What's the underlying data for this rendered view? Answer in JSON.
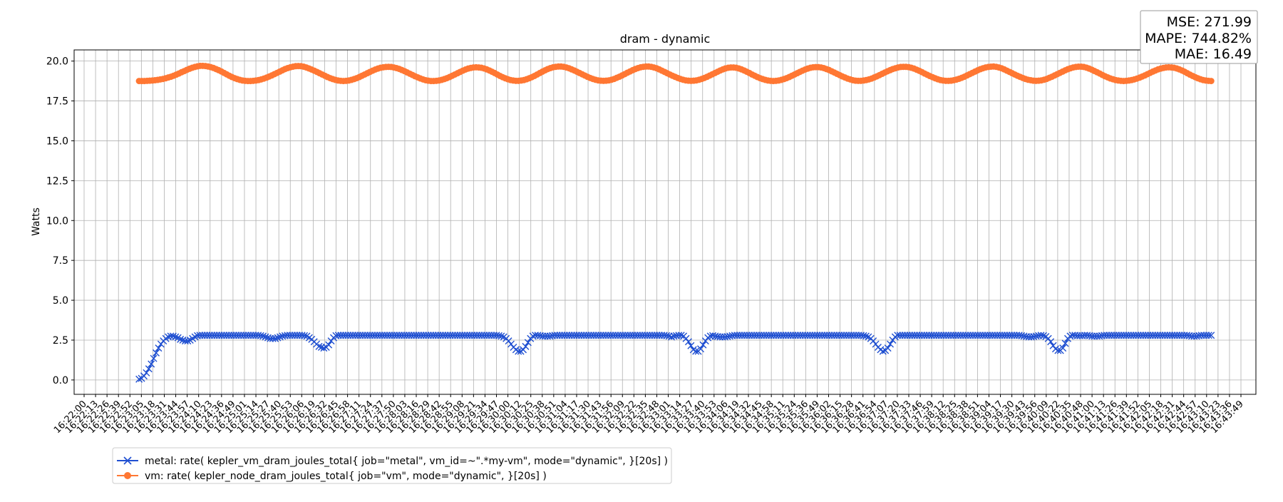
{
  "chart_data": {
    "type": "line",
    "title": "dram - dynamic",
    "xlabel": "",
    "ylabel": "Watts",
    "ylim": [
      -0.9,
      20.7
    ],
    "y_ticks": [
      0.0,
      2.5,
      5.0,
      7.5,
      10.0,
      12.5,
      15.0,
      17.5,
      20.0
    ],
    "y_tick_labels": [
      "0.0",
      "2.5",
      "5.0",
      "7.5",
      "10.0",
      "12.5",
      "15.0",
      "17.5",
      "20.0"
    ],
    "grid": true,
    "legend_placement": "bottom-left, below axes",
    "x_ticks": [
      "16:22:00",
      "16:22:13",
      "16:22:26",
      "16:22:39",
      "16:22:52",
      "16:23:05",
      "16:23:18",
      "16:23:31",
      "16:23:44",
      "16:23:57",
      "16:24:10",
      "16:24:23",
      "16:24:36",
      "16:24:49",
      "16:25:01",
      "16:25:14",
      "16:25:27",
      "16:25:40",
      "16:25:53",
      "16:26:06",
      "16:26:19",
      "16:26:32",
      "16:26:45",
      "16:26:58",
      "16:27:11",
      "16:27:24",
      "16:27:37",
      "16:27:50",
      "16:28:03",
      "16:28:16",
      "16:28:29",
      "16:28:42",
      "16:28:55",
      "16:29:08",
      "16:29:21",
      "16:29:34",
      "16:29:47",
      "16:30:00",
      "16:30:12",
      "16:30:25",
      "16:30:38",
      "16:30:51",
      "16:31:04",
      "16:31:17",
      "16:31:30",
      "16:31:43",
      "16:31:56",
      "16:32:09",
      "16:32:22",
      "16:32:35",
      "16:32:48",
      "16:33:01",
      "16:33:14",
      "16:33:27",
      "16:33:40",
      "16:33:53",
      "16:34:06",
      "16:34:19",
      "16:34:32",
      "16:34:45",
      "16:34:58",
      "16:35:11",
      "16:35:24",
      "16:35:36",
      "16:35:49",
      "16:36:02",
      "16:36:15",
      "16:36:28",
      "16:36:41",
      "16:36:54",
      "16:37:07",
      "16:37:20",
      "16:37:33",
      "16:37:46",
      "16:37:59",
      "16:38:12",
      "16:38:25",
      "16:38:38",
      "16:38:51",
      "16:39:04",
      "16:39:17",
      "16:39:30",
      "16:39:43",
      "16:39:56",
      "16:40:09",
      "16:40:22",
      "16:40:35",
      "16:40:48",
      "16:41:00",
      "16:41:13",
      "16:41:26",
      "16:41:39",
      "16:41:52",
      "16:42:05",
      "16:42:18",
      "16:42:31",
      "16:42:44",
      "16:42:57",
      "16:43:10",
      "16:43:23",
      "16:43:36",
      "16:43:49"
    ],
    "series": [
      {
        "name": "metal: rate( kepler_vm_dram_joules_total{ job=\"metal\", vm_id=~\".*my-vm\", mode=\"dynamic\", }[20s] )",
        "color": "#1f4fd1",
        "marker": "x",
        "x_range_index": [
          4.8,
          98.4
        ],
        "values": [
          0.05,
          0.1,
          0.25,
          0.45,
          0.7,
          1.0,
          1.35,
          1.7,
          2.0,
          2.25,
          2.45,
          2.6,
          2.7,
          2.75,
          2.75,
          2.7,
          2.65,
          2.55,
          2.5,
          2.45,
          2.45,
          2.5,
          2.6,
          2.7,
          2.78,
          2.8,
          2.8,
          2.8,
          2.8,
          2.8,
          2.8,
          2.8,
          2.8,
          2.8,
          2.8,
          2.8,
          2.8,
          2.8,
          2.8,
          2.8,
          2.8,
          2.8,
          2.8,
          2.8,
          2.8,
          2.8,
          2.8,
          2.8,
          2.8,
          2.8,
          2.78,
          2.75,
          2.7,
          2.65,
          2.6,
          2.6,
          2.6,
          2.65,
          2.7,
          2.75,
          2.78,
          2.8,
          2.8,
          2.8,
          2.8,
          2.8,
          2.8,
          2.8,
          2.78,
          2.75,
          2.65,
          2.55,
          2.4,
          2.25,
          2.1,
          2.05,
          2.0,
          2.05,
          2.2,
          2.45,
          2.65,
          2.78,
          2.8,
          2.8,
          2.8,
          2.8,
          2.8,
          2.8,
          2.8,
          2.8,
          2.8,
          2.8,
          2.8,
          2.8,
          2.8,
          2.8,
          2.8,
          2.8,
          2.8,
          2.8,
          2.8,
          2.8,
          2.8,
          2.8,
          2.8,
          2.8,
          2.8,
          2.8,
          2.8,
          2.8,
          2.8,
          2.8,
          2.8,
          2.8,
          2.8,
          2.8,
          2.8,
          2.8,
          2.8,
          2.8,
          2.8,
          2.8,
          2.8,
          2.8,
          2.8,
          2.8,
          2.8,
          2.8,
          2.8,
          2.8,
          2.8,
          2.8,
          2.8,
          2.8,
          2.8,
          2.8,
          2.8,
          2.8,
          2.8,
          2.8,
          2.8,
          2.8,
          2.8,
          2.8,
          2.8,
          2.8,
          2.8,
          2.8,
          2.78,
          2.75,
          2.7,
          2.6,
          2.45,
          2.25,
          2.05,
          1.9,
          1.8,
          1.8,
          1.9,
          2.1,
          2.35,
          2.6,
          2.75,
          2.8,
          2.8,
          2.78,
          2.75,
          2.75,
          2.75,
          2.75,
          2.78,
          2.8,
          2.8,
          2.8,
          2.8,
          2.8,
          2.8,
          2.8,
          2.8,
          2.8,
          2.8,
          2.8,
          2.8,
          2.8,
          2.8,
          2.8,
          2.8,
          2.8,
          2.8,
          2.8,
          2.8,
          2.8,
          2.8,
          2.8,
          2.8,
          2.8,
          2.8,
          2.8,
          2.8,
          2.8,
          2.8,
          2.8,
          2.8,
          2.8,
          2.8,
          2.8,
          2.8,
          2.8,
          2.8,
          2.8,
          2.8,
          2.8,
          2.8,
          2.8,
          2.8,
          2.8,
          2.8,
          2.78,
          2.75,
          2.7,
          2.75,
          2.78,
          2.8,
          2.8,
          2.75,
          2.6,
          2.4,
          2.15,
          1.9,
          1.8,
          1.8,
          1.95,
          2.2,
          2.45,
          2.65,
          2.75,
          2.78,
          2.75,
          2.72,
          2.7,
          2.7,
          2.7,
          2.72,
          2.75,
          2.78,
          2.8,
          2.8,
          2.8,
          2.8,
          2.8,
          2.8,
          2.8,
          2.8,
          2.8,
          2.8,
          2.8,
          2.8,
          2.8,
          2.8,
          2.8,
          2.8,
          2.8,
          2.8,
          2.8,
          2.8,
          2.8,
          2.8,
          2.8,
          2.8,
          2.8,
          2.8,
          2.8,
          2.8,
          2.8,
          2.8,
          2.8,
          2.8,
          2.8,
          2.8,
          2.8,
          2.8,
          2.8,
          2.8,
          2.8,
          2.8,
          2.8,
          2.8,
          2.8,
          2.8,
          2.8,
          2.8,
          2.8,
          2.8,
          2.8,
          2.8,
          2.8,
          2.8,
          2.8,
          2.78,
          2.75,
          2.7,
          2.6,
          2.45,
          2.25,
          2.05,
          1.9,
          1.8,
          1.85,
          2.0,
          2.25,
          2.5,
          2.7,
          2.8,
          2.8,
          2.8,
          2.8,
          2.8,
          2.8,
          2.8,
          2.8,
          2.8,
          2.8,
          2.8,
          2.8,
          2.8,
          2.8,
          2.8,
          2.8,
          2.8,
          2.8,
          2.8,
          2.8,
          2.8,
          2.8,
          2.8,
          2.8,
          2.8,
          2.8,
          2.8,
          2.8,
          2.8,
          2.8,
          2.8,
          2.8,
          2.8,
          2.8,
          2.8,
          2.8,
          2.8,
          2.8,
          2.8,
          2.8,
          2.8,
          2.8,
          2.8,
          2.8,
          2.8,
          2.8,
          2.8,
          2.8,
          2.8,
          2.8,
          2.8,
          2.78,
          2.75,
          2.72,
          2.7,
          2.7,
          2.72,
          2.75,
          2.78,
          2.8,
          2.78,
          2.72,
          2.6,
          2.4,
          2.15,
          1.95,
          1.85,
          1.85,
          2.0,
          2.3,
          2.6,
          2.75,
          2.8,
          2.8,
          2.78,
          2.78,
          2.78,
          2.8,
          2.8,
          2.78,
          2.75,
          2.75,
          2.75,
          2.75,
          2.78,
          2.8,
          2.8,
          2.8,
          2.8,
          2.8,
          2.8,
          2.8,
          2.8,
          2.8,
          2.8,
          2.8,
          2.8,
          2.8,
          2.8,
          2.8,
          2.8,
          2.8,
          2.8,
          2.8,
          2.8,
          2.8,
          2.8,
          2.8,
          2.8,
          2.8,
          2.8,
          2.8,
          2.8,
          2.8,
          2.8,
          2.8,
          2.8,
          2.8,
          2.8,
          2.8,
          2.78,
          2.75,
          2.75,
          2.75,
          2.78,
          2.8,
          2.8,
          2.8,
          2.8,
          2.8
        ]
      },
      {
        "name": "vm: rate( kepler_node_dram_joules_total{ job=\"vm\", mode=\"dynamic\", }[20s] )",
        "color": "#ff7733",
        "marker": "o",
        "x_range_index": [
          4.8,
          98.4
        ],
        "values": [
          18.75,
          18.75,
          18.75,
          18.76,
          18.77,
          18.78,
          18.8,
          18.82,
          18.85,
          18.88,
          18.92,
          18.97,
          19.02,
          19.08,
          19.15,
          19.22,
          19.3,
          19.37,
          19.45,
          19.52,
          19.58,
          19.63,
          19.67,
          19.7,
          19.7,
          19.69,
          19.66,
          19.62,
          19.57,
          19.5,
          19.43,
          19.35,
          19.26,
          19.17,
          19.08,
          19.0,
          18.93,
          18.87,
          18.82,
          18.78,
          18.76,
          18.75,
          18.75,
          18.76,
          18.78,
          18.81,
          18.85,
          18.9,
          18.96,
          19.03,
          19.1,
          19.18,
          19.26,
          19.34,
          19.42,
          19.5,
          19.56,
          19.61,
          19.65,
          19.68,
          19.69,
          19.68,
          19.65,
          19.6,
          19.54,
          19.47,
          19.4,
          19.32,
          19.24,
          19.16,
          19.08,
          19.0,
          18.93,
          18.87,
          18.82,
          18.78,
          18.76,
          18.75,
          18.76,
          18.78,
          18.82,
          18.87,
          18.93,
          19.0,
          19.08,
          19.16,
          19.24,
          19.32,
          19.4,
          19.47,
          19.53,
          19.58,
          19.61,
          19.63,
          19.64,
          19.63,
          19.6,
          19.56,
          19.51,
          19.44,
          19.37,
          19.29,
          19.21,
          19.13,
          19.05,
          18.98,
          18.91,
          18.85,
          18.8,
          18.77,
          18.75,
          18.75,
          18.76,
          18.78,
          18.82,
          18.87,
          18.93,
          19.0,
          19.08,
          19.16,
          19.24,
          19.32,
          19.4,
          19.47,
          19.53,
          19.57,
          19.6,
          19.61,
          19.6,
          19.58,
          19.54,
          19.48,
          19.41,
          19.33,
          19.25,
          19.16,
          19.07,
          18.99,
          18.92,
          18.86,
          18.81,
          18.78,
          18.76,
          18.76,
          18.78,
          18.81,
          18.86,
          18.92,
          18.99,
          19.07,
          19.16,
          19.25,
          19.34,
          19.42,
          19.5,
          19.56,
          19.61,
          19.64,
          19.66,
          19.66,
          19.64,
          19.6,
          19.55,
          19.48,
          19.41,
          19.33,
          19.25,
          19.17,
          19.09,
          19.01,
          18.94,
          18.88,
          18.83,
          18.79,
          18.77,
          18.76,
          18.77,
          18.79,
          18.83,
          18.88,
          18.95,
          19.02,
          19.1,
          19.18,
          19.27,
          19.35,
          19.43,
          19.5,
          19.56,
          19.61,
          19.64,
          19.66,
          19.66,
          19.64,
          19.6,
          19.55,
          19.48,
          19.4,
          19.32,
          19.24,
          19.16,
          19.08,
          19.01,
          18.94,
          18.88,
          18.83,
          18.79,
          18.77,
          18.76,
          18.77,
          18.79,
          18.83,
          18.88,
          18.94,
          19.01,
          19.09,
          19.17,
          19.25,
          19.33,
          19.41,
          19.48,
          19.54,
          19.58,
          19.6,
          19.6,
          19.58,
          19.54,
          19.48,
          19.41,
          19.33,
          19.25,
          19.16,
          19.08,
          19.0,
          18.93,
          18.87,
          18.82,
          18.78,
          18.76,
          18.75,
          18.76,
          18.78,
          18.82,
          18.87,
          18.93,
          19.0,
          19.08,
          19.16,
          19.24,
          19.32,
          19.4,
          19.47,
          19.53,
          19.58,
          19.61,
          19.62,
          19.62,
          19.6,
          19.56,
          19.5,
          19.44,
          19.36,
          19.28,
          19.2,
          19.12,
          19.04,
          18.97,
          18.9,
          18.85,
          18.8,
          18.77,
          18.76,
          18.76,
          18.78,
          18.81,
          18.85,
          18.9,
          18.97,
          19.04,
          19.12,
          19.2,
          19.28,
          19.36,
          19.43,
          19.5,
          19.55,
          19.6,
          19.63,
          19.64,
          19.64,
          19.62,
          19.58,
          19.53,
          19.46,
          19.39,
          19.31,
          19.22,
          19.14,
          19.06,
          18.99,
          18.92,
          18.86,
          18.81,
          18.78,
          18.76,
          18.76,
          18.77,
          18.8,
          18.84,
          18.89,
          18.95,
          19.02,
          19.1,
          19.18,
          19.26,
          19.34,
          19.42,
          19.49,
          19.55,
          19.6,
          19.63,
          19.65,
          19.66,
          19.64,
          19.6,
          19.55,
          19.48,
          19.4,
          19.32,
          19.24,
          19.16,
          19.08,
          19.01,
          18.94,
          18.88,
          18.83,
          18.8,
          18.77,
          18.76,
          18.77,
          18.79,
          18.83,
          18.88,
          18.95,
          19.02,
          19.1,
          19.18,
          19.26,
          19.34,
          19.42,
          19.49,
          19.55,
          19.6,
          19.63,
          19.65,
          19.65,
          19.63,
          19.59,
          19.53,
          19.46,
          19.38,
          19.3,
          19.22,
          19.13,
          19.05,
          18.98,
          18.91,
          18.86,
          18.81,
          18.78,
          18.76,
          18.75,
          18.76,
          18.78,
          18.81,
          18.85,
          18.9,
          18.96,
          19.03,
          19.1,
          19.18,
          19.26,
          19.34,
          19.41,
          19.48,
          19.53,
          19.57,
          19.6,
          19.61,
          19.6,
          19.58,
          19.54,
          19.48,
          19.41,
          19.33,
          19.24,
          19.15,
          19.07,
          18.99,
          18.92,
          18.86,
          18.81,
          18.78,
          18.76,
          18.75
        ]
      }
    ]
  },
  "stats_box": {
    "mse": "MSE: 271.99",
    "mape": "MAPE: 744.82%",
    "mae": "MAE: 16.49"
  },
  "legend": {
    "entries": [
      {
        "label": "metal: rate( kepler_vm_dram_joules_total{ job=\"metal\", vm_id=~\".*my-vm\", mode=\"dynamic\", }[20s] )",
        "color": "#1f4fd1",
        "marker": "x"
      },
      {
        "label": "vm: rate( kepler_node_dram_joules_total{ job=\"vm\", mode=\"dynamic\", }[20s] )",
        "color": "#ff7733",
        "marker": "o"
      }
    ]
  }
}
